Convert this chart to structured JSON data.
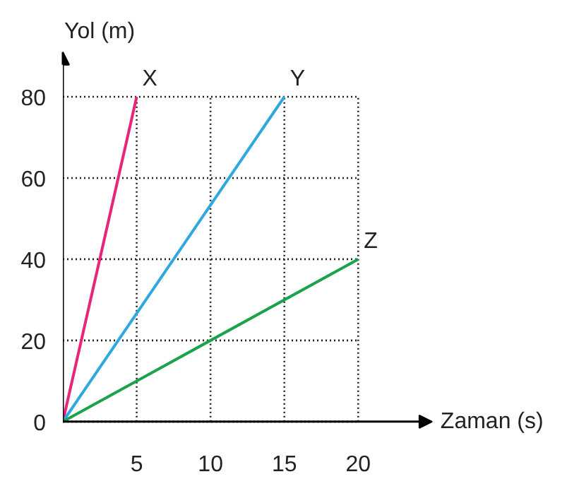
{
  "chart_data": {
    "type": "line",
    "xlabel": "Zaman (s)",
    "ylabel": "Yol (m)",
    "xlim": [
      0,
      25
    ],
    "ylim": [
      0,
      91
    ],
    "xticks": [
      5,
      10,
      15,
      20
    ],
    "yticks": [
      0,
      20,
      40,
      60,
      80
    ],
    "grid": true,
    "marker": "none",
    "line_style": "solid",
    "series": [
      {
        "name": "X",
        "color": "#e8247c",
        "x": [
          0,
          5
        ],
        "values": [
          0,
          80
        ]
      },
      {
        "name": "Y",
        "color": "#2fa8e0",
        "x": [
          0,
          15
        ],
        "values": [
          0,
          80
        ]
      },
      {
        "name": "Z",
        "color": "#1aa34a",
        "x": [
          0,
          20
        ],
        "values": [
          0,
          40
        ]
      }
    ]
  }
}
